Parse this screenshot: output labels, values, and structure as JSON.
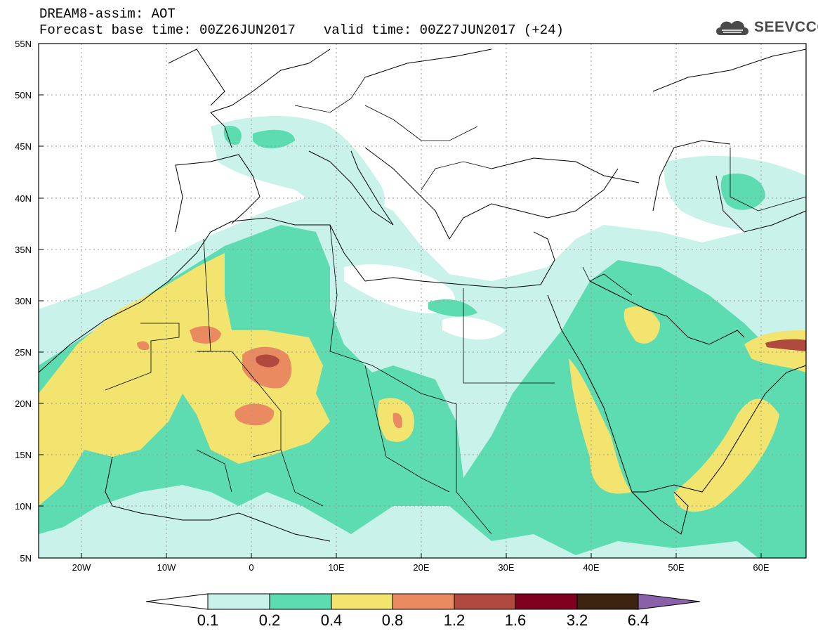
{
  "header": {
    "line1": "DREAM8-assim: AOT",
    "base": "Forecast base time: 00Z26JUN2017",
    "valid": "valid time: 00Z27JUN2017 (+24)"
  },
  "logo": {
    "text": "SEEVCCC",
    "icon": "cloud-icon"
  },
  "axes": {
    "lat_labels": [
      "55N",
      "50N",
      "45N",
      "40N",
      "35N",
      "30N",
      "25N",
      "20N",
      "15N",
      "10N",
      "5N"
    ],
    "lon_labels": [
      "20W",
      "10W",
      "0",
      "10E",
      "20E",
      "30E",
      "40E",
      "50E",
      "60E"
    ]
  },
  "colorbar": {
    "labels": [
      "0.1",
      "0.2",
      "0.4",
      "0.8",
      "1.2",
      "1.6",
      "3.2",
      "6.4"
    ],
    "colors": [
      "#ffffff",
      "#c8f2ea",
      "#5cdcb0",
      "#f2e46e",
      "#e98a60",
      "#b04a3e",
      "#800020",
      "#3c2410",
      "#8a60a8"
    ]
  }
}
